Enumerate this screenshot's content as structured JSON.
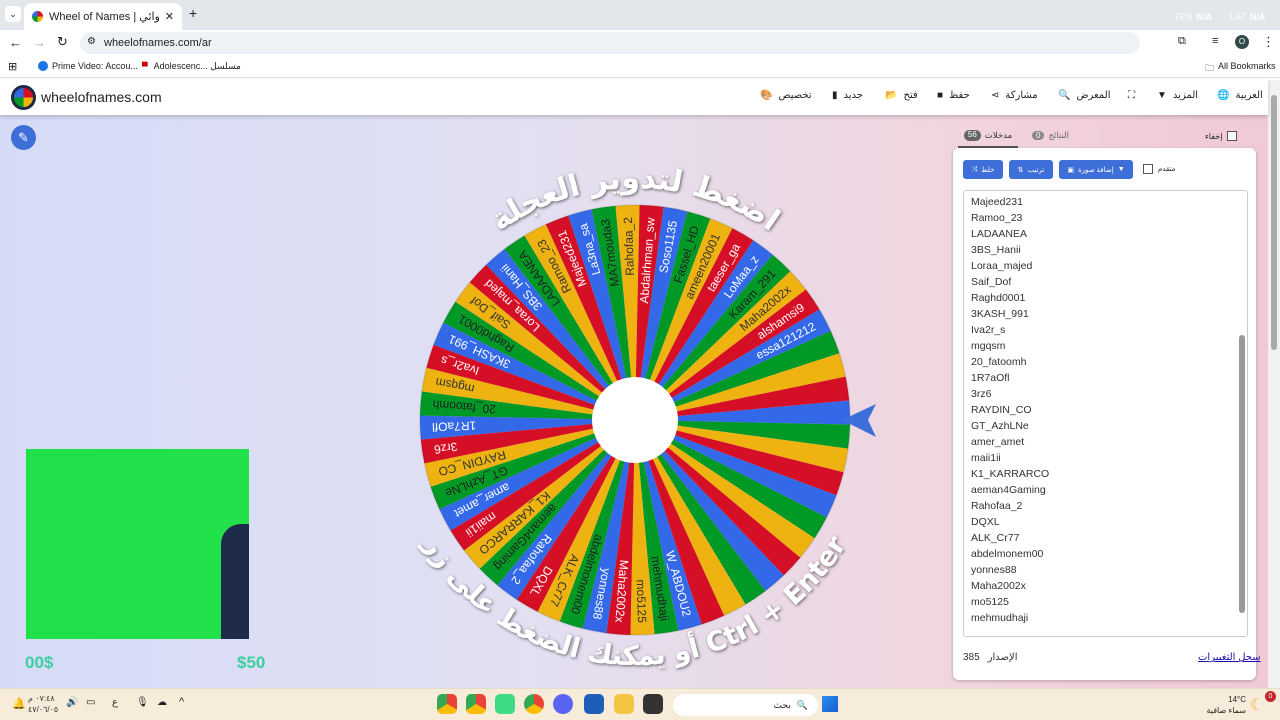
{
  "browser": {
    "tab_title": "Wheel of Names | اسم العشوائي",
    "url": "wheelofnames.com/ar",
    "bookmarks": [
      "Prime Video: Accou...",
      "Adolescenc... مسلسل"
    ],
    "all_bookmarks": "All Bookmarks",
    "profile_initial": "O",
    "overlay": {
      "fps_label": "FPS",
      "fps_value": "N/A",
      "lat_label": "LAT",
      "lat_value": "N/A"
    }
  },
  "site": {
    "logo_text": "wheelofnames.com",
    "nav": {
      "language": "العربية",
      "more": "المزيد",
      "gallery": "المعرض",
      "share": "مشاركة",
      "save": "حفظ",
      "open": "فتح",
      "new": "جديد",
      "customize": "تخصيص"
    }
  },
  "wheel": {
    "top_text": "اضغط لتدوير العجلة",
    "bottom_text": "أو يمكنك الضغط على زر Ctrl + Enter",
    "colors": [
      "#eeb211",
      "#d50f25",
      "#3369e8",
      "#009925"
    ],
    "pointer_color": "#3e6fd8",
    "slices": [
      "Rahofaa_2",
      "Abdalrhman_sw",
      "Soso1135",
      "Fassel_HD",
      "ameen20001",
      "taeser_ga",
      "LoMaa_z",
      "Karam_291",
      "Maha2002x",
      "alshamsi9",
      "essa121212",
      "",
      "",
      "",
      "",
      "",
      "",
      "",
      "",
      "",
      "",
      "",
      "",
      "",
      "",
      "",
      "W_ABDOU2",
      "mehmudhaji",
      "mo5125",
      "Maha2002x",
      "yonnes88",
      "abdelmonem00",
      "ALK_Cr77",
      "DQXL",
      "Rahofaa_2",
      "aeman4Gaming",
      "K1_KARRARCO",
      "maii1ii",
      "amer_amet",
      "GT_AzhLNe",
      "RAYDIN_CO",
      "3rz6",
      "1R7aOfl",
      "20_fatoomh",
      "mgqsm",
      "Iva2r_s",
      "3KASH_991",
      "Raghd0001",
      "Saif_Dof",
      "Loraa_majed",
      "3BS_Hanii",
      "LADAANEA",
      "Ramoo_23",
      "Majeed231",
      "La3na_sa",
      "MA7mouda3"
    ]
  },
  "stream_overlay": {
    "left_amount": "00$",
    "right_amount": "$50"
  },
  "panel": {
    "hide_label": "إخفاء",
    "tabs": [
      {
        "label": "مدخلات",
        "count": "56"
      },
      {
        "label": "النتائج",
        "count": "0"
      }
    ],
    "shuffle": "خلط",
    "sort": "ترتيب",
    "add_image": "إضافة صورة",
    "advanced": "متقدم",
    "entries": [
      "Majeed231",
      "Ramoo_23",
      "LADAANEA",
      "3BS_Hanii",
      "Loraa_majed",
      "Saif_Dof",
      "Raghd0001",
      "3KASH_991",
      "Iva2r_s",
      "mgqsm",
      "20_fatoomh",
      "1R7aOfl",
      "3rz6",
      "RAYDIN_CO",
      "GT_AzhLNe",
      "amer_amet",
      "maii1ii",
      "K1_KARRARCO",
      "aeman4Gaming",
      "Rahofaa_2",
      "DQXL",
      "ALK_Cr77",
      "abdelmonem00",
      "yonnes88",
      "Maha2002x",
      "mo5125",
      "mehmudhaji"
    ],
    "version_label": "الإصدار",
    "version": "385",
    "changelog": "سجل التغييرات"
  },
  "taskbar": {
    "time": "٠٧:٤٨ م",
    "date": "٤٧/٠٦/٠٥",
    "lang": "ع",
    "search_placeholder": "بحث",
    "weather_temp": "14°C",
    "weather_desc": "سماء صافية",
    "notif_count": "0"
  }
}
